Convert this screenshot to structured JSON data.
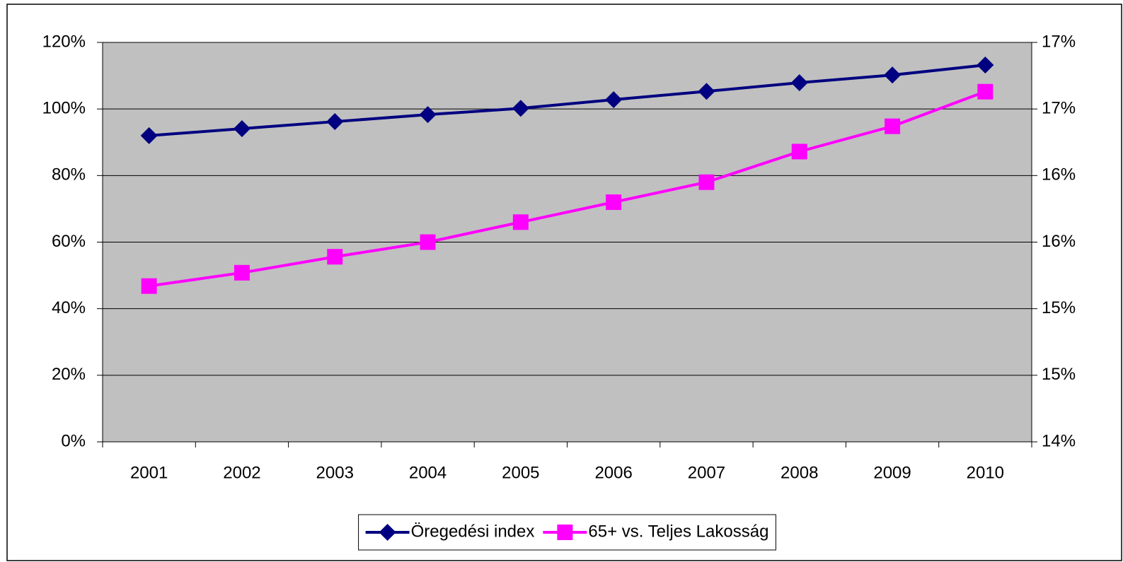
{
  "chart_data": {
    "type": "line",
    "categories": [
      "2001",
      "2002",
      "2003",
      "2004",
      "2005",
      "2006",
      "2007",
      "2008",
      "2009",
      "2010"
    ],
    "series": [
      {
        "name": "Öregedési index",
        "color": "#000080",
        "marker": "diamond",
        "values": [
          92.0,
          94.1,
          96.2,
          98.3,
          100.2,
          102.8,
          105.3,
          107.9,
          110.2,
          113.2
        ]
      },
      {
        "name": "65+ vs. Teljes Lakosság",
        "color": "#ff00ff",
        "marker": "square",
        "axis": "y2",
        "values": [
          15.17,
          15.27,
          15.39,
          15.5,
          15.65,
          15.8,
          15.95,
          16.18,
          16.37,
          16.63
        ]
      }
    ],
    "ylim": [
      0,
      120
    ],
    "yticks": [
      {
        "value": 0,
        "label": "0%"
      },
      {
        "value": 20,
        "label": "20%"
      },
      {
        "value": 40,
        "label": "40%"
      },
      {
        "value": 60,
        "label": "60%"
      },
      {
        "value": 80,
        "label": "80%"
      },
      {
        "value": 100,
        "label": "100%"
      },
      {
        "value": 120,
        "label": "120%"
      }
    ],
    "y2lim": [
      14,
      17
    ],
    "y2ticks": [
      {
        "value": 14,
        "label": "14%"
      },
      {
        "value": 14.5,
        "label": "15%"
      },
      {
        "value": 15,
        "label": "15%"
      },
      {
        "value": 15.5,
        "label": "16%"
      },
      {
        "value": 16,
        "label": "16%"
      },
      {
        "value": 16.5,
        "label": "17%"
      },
      {
        "value": 17,
        "label": "17%"
      }
    ],
    "grid": true,
    "plot_background": "#c0c0c0",
    "legend": "bottom"
  }
}
